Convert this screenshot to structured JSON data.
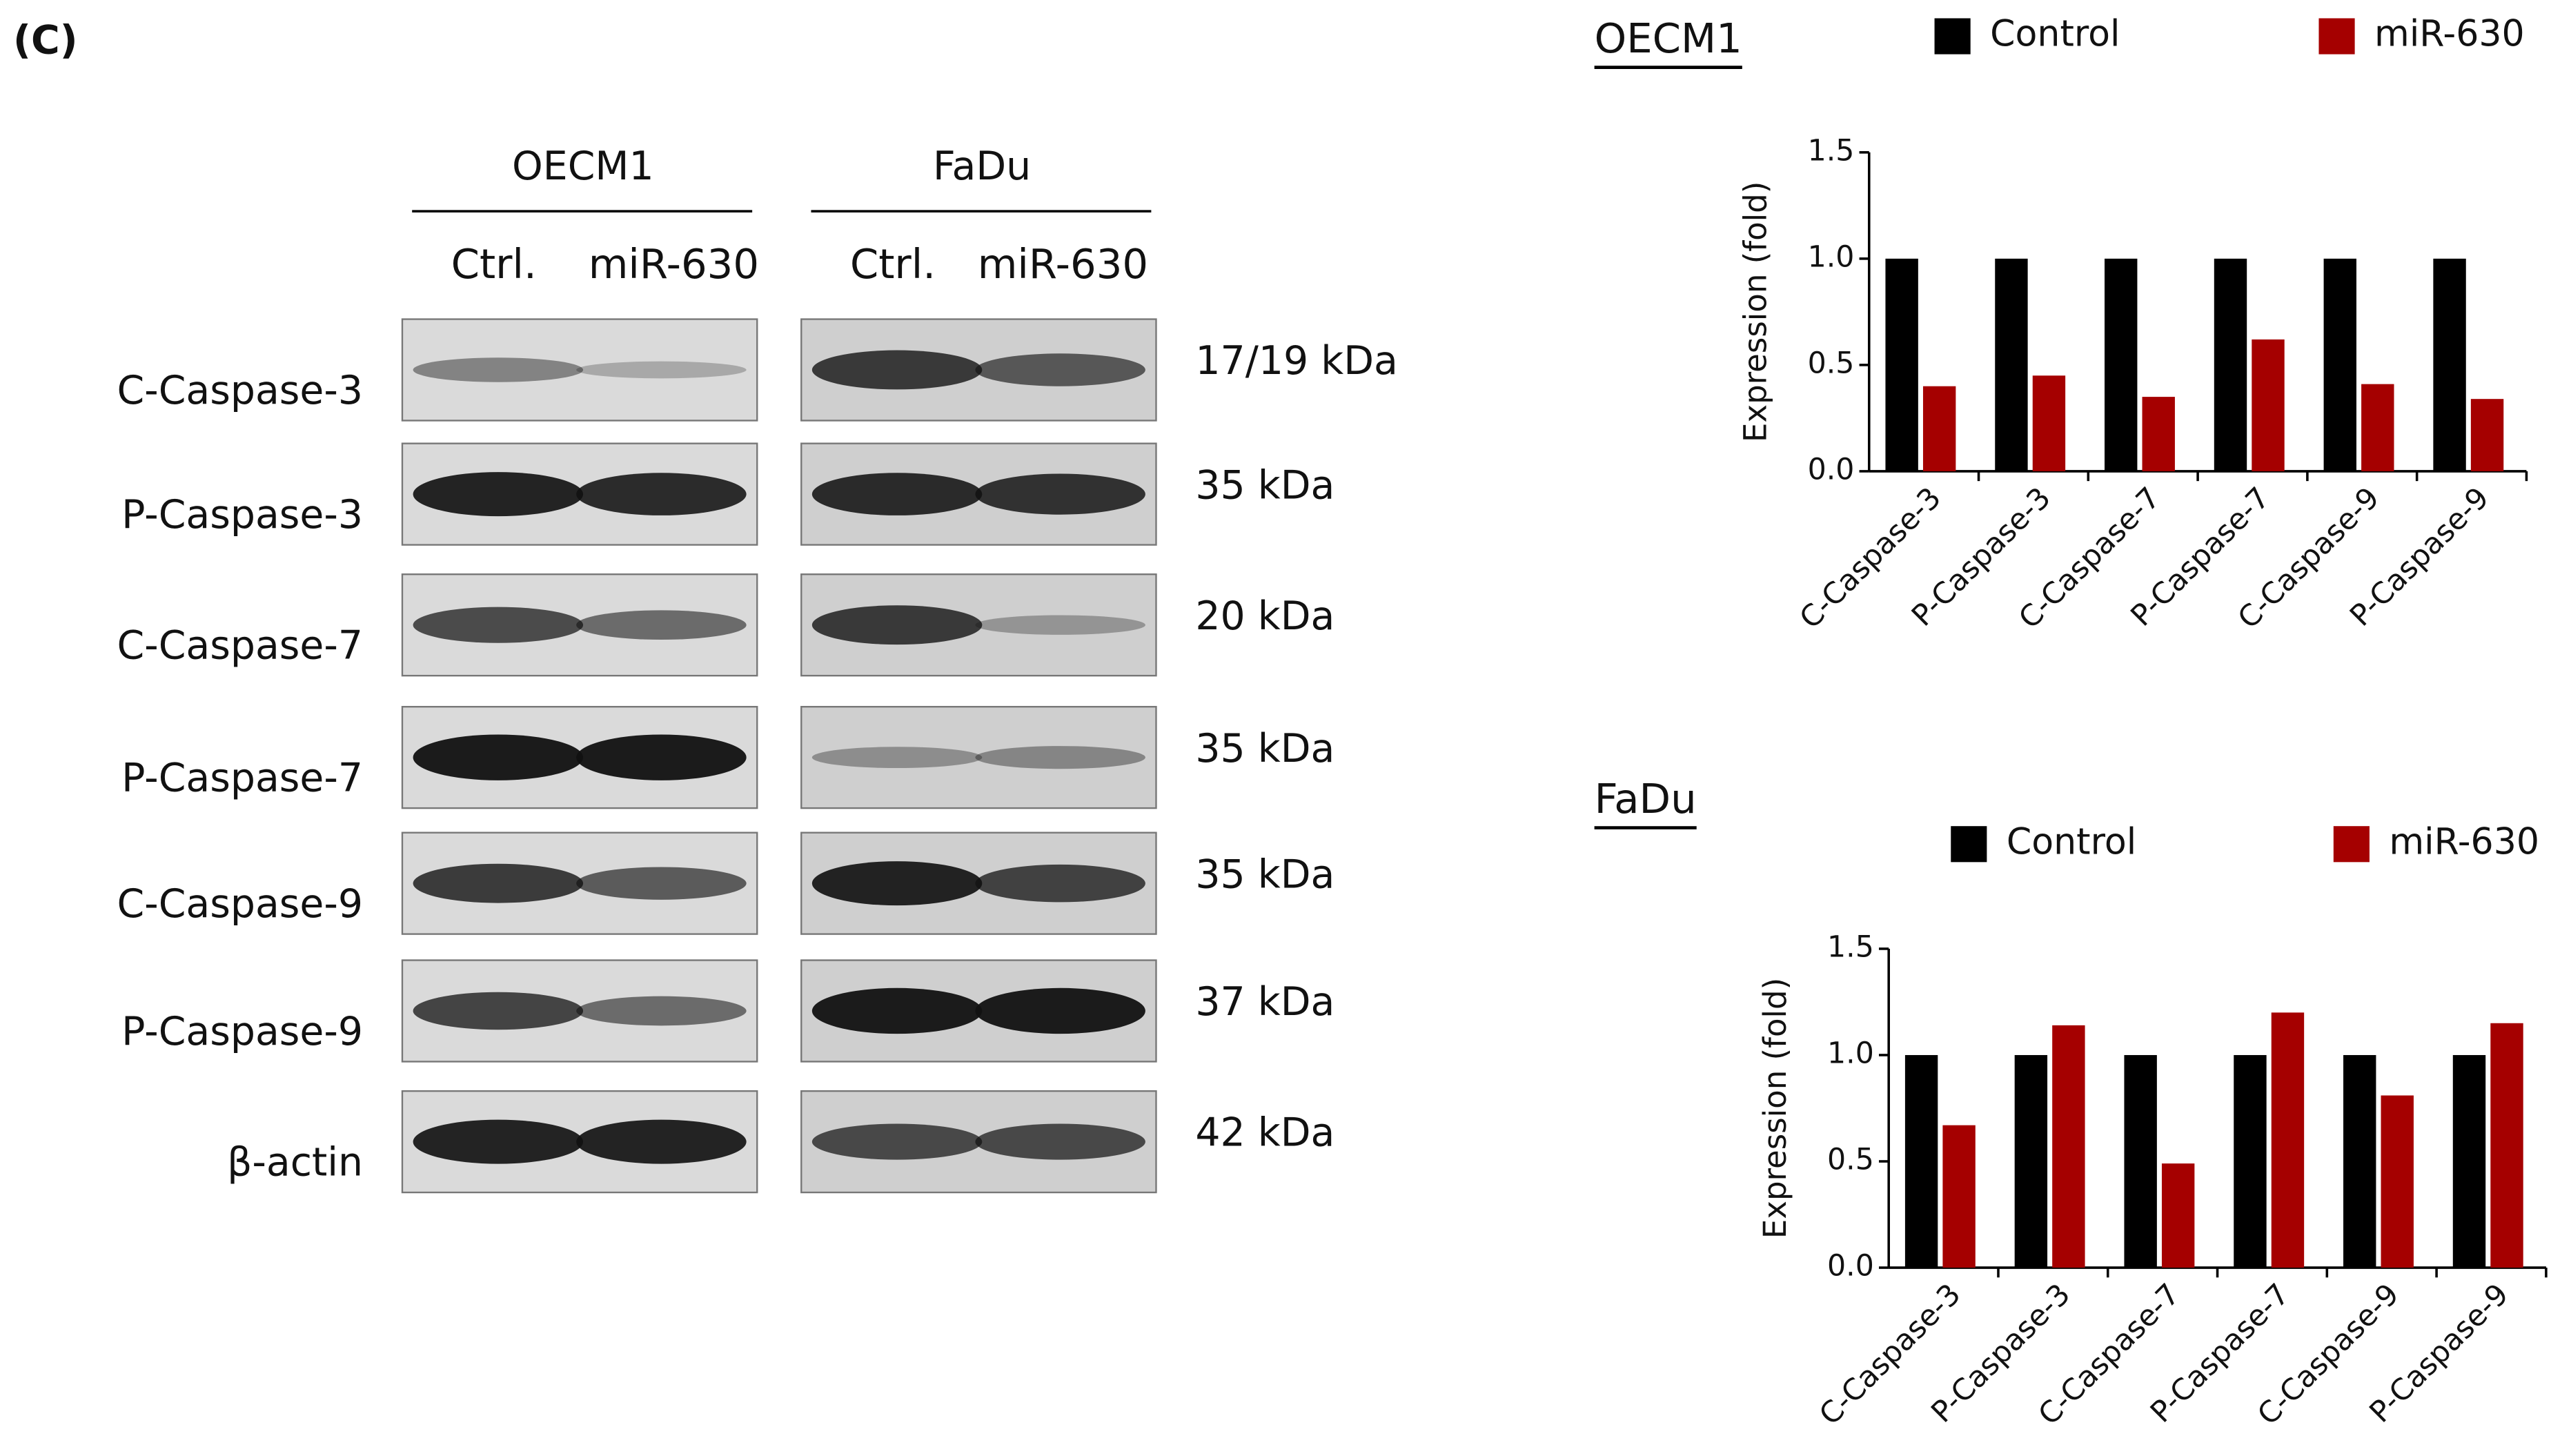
{
  "panel_label": "(C)",
  "blot": {
    "groups": [
      "OECM1",
      "FaDu"
    ],
    "lanes": [
      "Ctrl.",
      "miR-630",
      "Ctrl.",
      "miR-630"
    ],
    "rows": [
      {
        "label": "C-Caspase-3",
        "size": "17/19 kDa"
      },
      {
        "label": "P-Caspase-3",
        "size": "35 kDa"
      },
      {
        "label": "C-Caspase-7",
        "size": "20 kDa"
      },
      {
        "label": "P-Caspase-7",
        "size": "35 kDa"
      },
      {
        "label": "C-Caspase-9",
        "size": "35 kDa"
      },
      {
        "label": "P-Caspase-9",
        "size": "37 kDa"
      },
      {
        "label": "β-actin",
        "size": "42 kDa"
      }
    ]
  },
  "chart_data": [
    {
      "type": "bar",
      "title": "OECM1",
      "y_label": "Expression (fold)",
      "categories": [
        "C-Caspase-3",
        "P-Caspase-3",
        "C-Caspase-7",
        "P-Caspase-7",
        "C-Caspase-9",
        "P-Caspase-9"
      ],
      "series": [
        {
          "name": "Control",
          "color": "#000000",
          "values": [
            1.0,
            1.0,
            1.0,
            1.0,
            1.0,
            1.0
          ]
        },
        {
          "name": "miR-630",
          "color": "#a50000",
          "values": [
            0.4,
            0.45,
            0.35,
            0.62,
            0.41,
            0.34
          ]
        }
      ],
      "ylim": [
        0,
        1.5
      ],
      "yticks": [
        {
          "value": 0,
          "label": "0.0"
        },
        {
          "value": 0.5,
          "label": "0.5"
        },
        {
          "value": 1,
          "label": "1.0"
        },
        {
          "value": 1.5,
          "label": "1.5"
        }
      ],
      "grid": false,
      "legend": "top"
    },
    {
      "type": "bar",
      "title": "FaDu",
      "y_label": "Expression (fold)",
      "categories": [
        "C-Caspase-3",
        "P-Caspase-3",
        "C-Caspase-7",
        "P-Caspase-7",
        "C-Caspase-9",
        "P-Caspase-9"
      ],
      "series": [
        {
          "name": "Control",
          "color": "#000000",
          "values": [
            1.0,
            1.0,
            1.0,
            1.0,
            1.0,
            1.0
          ]
        },
        {
          "name": "miR-630",
          "color": "#a50000",
          "values": [
            0.67,
            1.14,
            0.49,
            1.2,
            0.81,
            1.15
          ]
        }
      ],
      "ylim": [
        0,
        1.5
      ],
      "yticks": [
        {
          "value": 0,
          "label": "0.0"
        },
        {
          "value": 0.5,
          "label": "0.5"
        },
        {
          "value": 1,
          "label": "1.0"
        },
        {
          "value": 1.5,
          "label": "1.5"
        }
      ],
      "grid": false,
      "legend": "top"
    }
  ]
}
